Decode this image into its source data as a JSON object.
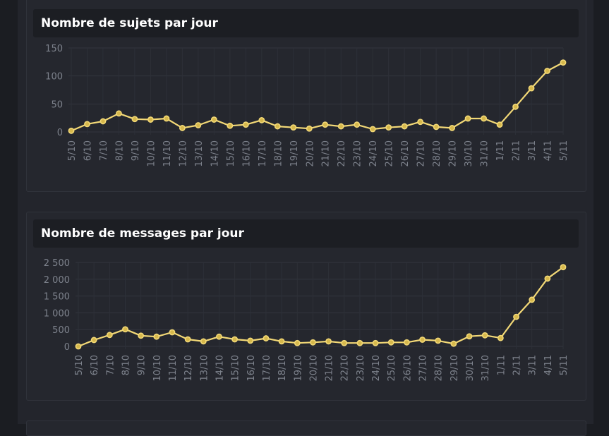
{
  "charts": [
    {
      "title": "Nombre de sujets par jour",
      "chart_data": {
        "type": "line",
        "title": "Nombre de sujets par jour",
        "xlabel": "",
        "ylabel": "",
        "x": [
          "5/10",
          "6/10",
          "7/10",
          "8/10",
          "9/10",
          "10/10",
          "11/10",
          "12/10",
          "13/10",
          "14/10",
          "15/10",
          "16/10",
          "17/10",
          "18/10",
          "19/10",
          "20/10",
          "21/10",
          "22/10",
          "23/10",
          "24/10",
          "25/10",
          "26/10",
          "27/10",
          "28/10",
          "29/10",
          "30/10",
          "31/10",
          "1/11",
          "2/11",
          "3/11",
          "4/11",
          "5/11"
        ],
        "series": [
          {
            "values": [
              2,
              14,
              19,
              33,
              23,
              22,
              24,
              7,
              12,
              22,
              11,
              13,
              21,
              10,
              8,
              6,
              13,
              10,
              13,
              5,
              8,
              10,
              18,
              9,
              7,
              24,
              24,
              13,
              45,
              78,
              109,
              124
            ]
          }
        ],
        "ylim": [
          0,
          150
        ],
        "yticks": [
          "0",
          "50",
          "100",
          "150"
        ],
        "grid": true,
        "line_color": "#f3d977",
        "marker_color": "#d6b84c"
      }
    },
    {
      "title": "Nombre de messages par jour",
      "chart_data": {
        "type": "line",
        "title": "Nombre de messages par jour",
        "xlabel": "",
        "ylabel": "",
        "x": [
          "5/10",
          "6/10",
          "7/10",
          "8/10",
          "9/10",
          "10/10",
          "11/10",
          "12/10",
          "13/10",
          "14/10",
          "15/10",
          "16/10",
          "17/10",
          "18/10",
          "19/10",
          "20/10",
          "21/10",
          "22/10",
          "23/10",
          "24/10",
          "25/10",
          "26/10",
          "27/10",
          "28/10",
          "29/10",
          "30/10",
          "31/10",
          "1/11",
          "2/11",
          "3/11",
          "4/11",
          "5/11"
        ],
        "series": [
          {
            "values": [
              0,
              190,
              340,
              510,
              320,
              290,
              420,
              210,
              150,
              290,
              210,
              170,
              240,
              150,
              100,
              120,
              150,
              100,
              100,
              100,
              120,
              120,
              200,
              170,
              80,
              300,
              330,
              250,
              880,
              1390,
              2020,
              2360
            ]
          }
        ],
        "ylim": [
          0,
          2500
        ],
        "yticks": [
          "0",
          "500",
          "1 000",
          "1 500",
          "2 000",
          "2 500"
        ],
        "grid": true,
        "line_color": "#f3d977",
        "marker_color": "#d6b84c"
      }
    }
  ]
}
